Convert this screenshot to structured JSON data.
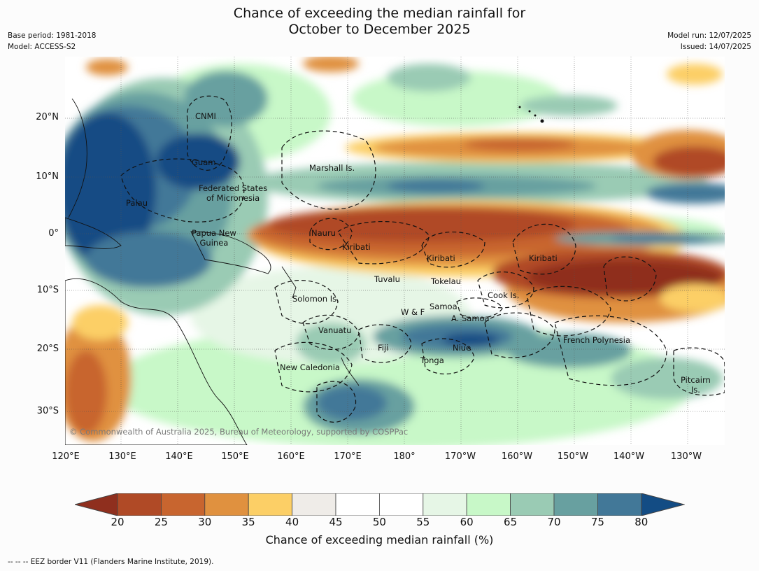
{
  "title_line1": "Chance of exceeding the median rainfall for",
  "title_line2": "October to December 2025",
  "base_period": "Base period: 1981-2018",
  "model": "Model: ACCESS-S2",
  "model_run": "Model run: 12/07/2025",
  "issued": "Issued: 14/07/2025",
  "copyright": "© Commonwealth of Australia 2025, Bureau of Meteorology, supported by COSPPac",
  "lat_labels": [
    "20°N",
    "10°N",
    "0°",
    "10°S",
    "20°S",
    "30°S"
  ],
  "lon_labels": [
    "120°E",
    "130°E",
    "140°E",
    "150°E",
    "160°E",
    "170°E",
    "180°",
    "170°W",
    "160°W",
    "150°W",
    "140°W",
    "130°W"
  ],
  "regions": [
    {
      "name": "CNMI"
    },
    {
      "name": "Guam"
    },
    {
      "name": "Marshall Is."
    },
    {
      "name": "Federated States\nof Micronesia"
    },
    {
      "name": "Palau"
    },
    {
      "name": "Papua New\nGuinea"
    },
    {
      "name": "Nauru"
    },
    {
      "name": "Kiribati"
    },
    {
      "name": "Kiribati"
    },
    {
      "name": "Kiribati"
    },
    {
      "name": "Tuvalu"
    },
    {
      "name": "Tokelau"
    },
    {
      "name": "Solomon Is."
    },
    {
      "name": "Cook Is."
    },
    {
      "name": "Samoa"
    },
    {
      "name": "W & F"
    },
    {
      "name": "A. Samoa"
    },
    {
      "name": "Vanuatu"
    },
    {
      "name": "Fiji"
    },
    {
      "name": "Niue"
    },
    {
      "name": "French Polynesia"
    },
    {
      "name": "Tonga"
    },
    {
      "name": "New Caledonia"
    },
    {
      "name": "Pitcairn\nIs."
    }
  ],
  "colorbar": {
    "ticks": [
      "20",
      "25",
      "30",
      "35",
      "40",
      "45",
      "50",
      "55",
      "60",
      "65",
      "70",
      "75",
      "80"
    ],
    "colors": [
      "#8f2f1e",
      "#b04a26",
      "#c8652f",
      "#e0913f",
      "#fccf66",
      "#efece8",
      "#ffffff",
      "#ffffff",
      "#e6f6e6",
      "#c8f8c8",
      "#9acbb4",
      "#68a0a0",
      "#427898",
      "#134c84"
    ],
    "title": "Chance of exceeding median rainfall (%)"
  },
  "legend_note": "--  --  -- EEZ border V11 (Flanders Marine Institute, 2019)."
}
